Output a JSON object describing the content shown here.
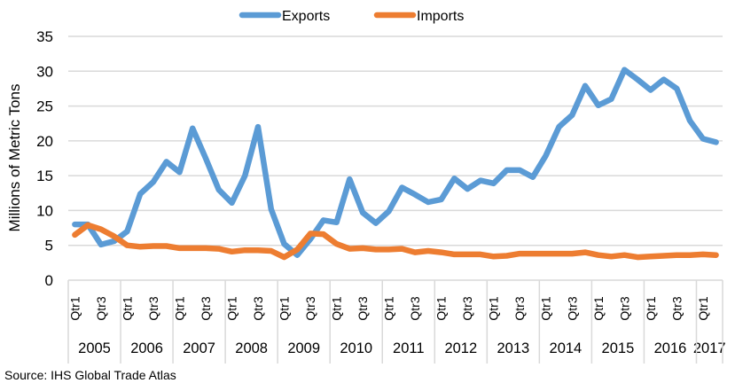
{
  "chart_data": {
    "type": "line",
    "title": "",
    "ylabel": "Millions of Metric Tons",
    "xlabel": "",
    "ylim": [
      0,
      35
    ],
    "yticks": [
      0,
      5,
      10,
      15,
      20,
      25,
      30,
      35
    ],
    "grid": true,
    "legend_position": "top",
    "years": [
      "2005",
      "2006",
      "2007",
      "2008",
      "2009",
      "2010",
      "2011",
      "2012",
      "2013",
      "2014",
      "2015",
      "2016",
      "2017"
    ],
    "quarters_per_year": [
      4,
      4,
      4,
      4,
      4,
      4,
      4,
      4,
      4,
      4,
      4,
      4,
      2
    ],
    "quarter_labels": [
      "Qtr1",
      "Qtr3"
    ],
    "x": [
      "2005 Qtr1",
      "2005 Qtr2",
      "2005 Qtr3",
      "2005 Qtr4",
      "2006 Qtr1",
      "2006 Qtr2",
      "2006 Qtr3",
      "2006 Qtr4",
      "2007 Qtr1",
      "2007 Qtr2",
      "2007 Qtr3",
      "2007 Qtr4",
      "2008 Qtr1",
      "2008 Qtr2",
      "2008 Qtr3",
      "2008 Qtr4",
      "2009 Qtr1",
      "2009 Qtr2",
      "2009 Qtr3",
      "2009 Qtr4",
      "2010 Qtr1",
      "2010 Qtr2",
      "2010 Qtr3",
      "2010 Qtr4",
      "2011 Qtr1",
      "2011 Qtr2",
      "2011 Qtr3",
      "2011 Qtr4",
      "2012 Qtr1",
      "2012 Qtr2",
      "2012 Qtr3",
      "2012 Qtr4",
      "2013 Qtr1",
      "2013 Qtr2",
      "2013 Qtr3",
      "2013 Qtr4",
      "2014 Qtr1",
      "2014 Qtr2",
      "2014 Qtr3",
      "2014 Qtr4",
      "2015 Qtr1",
      "2015 Qtr2",
      "2015 Qtr3",
      "2015 Qtr4",
      "2016 Qtr1",
      "2016 Qtr2",
      "2016 Qtr3",
      "2016 Qtr4",
      "2017 Qtr1",
      "2017 Qtr2"
    ],
    "series": [
      {
        "name": "Exports",
        "color": "#5B9BD5",
        "values": [
          8.0,
          8.0,
          5.1,
          5.6,
          7.0,
          12.4,
          14.1,
          17.0,
          15.5,
          21.8,
          17.5,
          13.0,
          11.1,
          15.0,
          22.0,
          10.2,
          5.2,
          3.6,
          5.9,
          8.6,
          8.3,
          14.5,
          9.7,
          8.2,
          9.9,
          13.3,
          12.3,
          11.2,
          11.6,
          14.6,
          13.1,
          14.3,
          13.9,
          15.8,
          15.8,
          14.8,
          17.9,
          22.0,
          23.7,
          27.9,
          25.1,
          26.0,
          30.2,
          28.8,
          27.3,
          28.8,
          27.5,
          22.9,
          20.3,
          19.8
        ]
      },
      {
        "name": "Imports",
        "color": "#ED7D31",
        "values": [
          6.5,
          7.9,
          7.3,
          6.3,
          5.0,
          4.8,
          4.9,
          4.9,
          4.6,
          4.6,
          4.6,
          4.5,
          4.1,
          4.3,
          4.3,
          4.2,
          3.3,
          4.4,
          6.7,
          6.6,
          5.2,
          4.5,
          4.6,
          4.4,
          4.4,
          4.5,
          4.0,
          4.2,
          4.0,
          3.7,
          3.7,
          3.7,
          3.4,
          3.5,
          3.8,
          3.8,
          3.8,
          3.8,
          3.8,
          4.0,
          3.6,
          3.4,
          3.6,
          3.3,
          3.4,
          3.5,
          3.6,
          3.6,
          3.7,
          3.6
        ]
      }
    ]
  },
  "footer": {
    "source": "Source: IHS Global Trade Atlas"
  }
}
